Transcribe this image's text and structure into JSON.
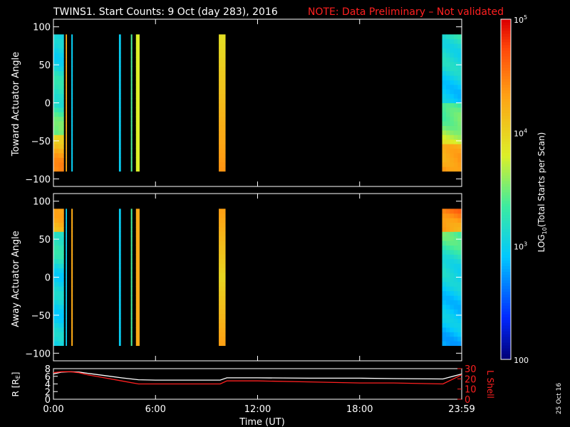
{
  "title": {
    "main": "TWINS1. Start Counts:  9 Oct (day 283), 2016",
    "note": "NOTE: Data Preliminary – Not validated",
    "note_color": "#ff2020"
  },
  "chart_data": [
    {
      "type": "heatmap",
      "panel": "toward",
      "ylabel": "Toward Actuator Angle",
      "ylim": [
        -110,
        110
      ],
      "yticks": [
        "100",
        "50",
        "0",
        "−50",
        "−100"
      ],
      "xlim_hours": [
        0,
        24
      ],
      "bands_hours": [
        {
          "start": 0.0,
          "end": 0.6,
          "profile": "toward_mix"
        },
        {
          "start": 0.72,
          "end": 0.78,
          "profile": "fill_orange"
        },
        {
          "start": 1.05,
          "end": 1.12,
          "profile": "fill_cyan"
        },
        {
          "start": 3.85,
          "end": 3.95,
          "profile": "fill_cyan"
        },
        {
          "start": 4.55,
          "end": 4.62,
          "profile": "fill_green"
        },
        {
          "start": 4.85,
          "end": 5.05,
          "profile": "fill_yellow"
        },
        {
          "start": 9.72,
          "end": 10.1,
          "profile": "toward_hot"
        },
        {
          "start": 22.85,
          "end": 23.99,
          "profile": "toward_cool"
        }
      ]
    },
    {
      "type": "heatmap",
      "panel": "away",
      "ylabel": "Away Actuator Angle",
      "ylim": [
        -110,
        110
      ],
      "yticks": [
        "100",
        "50",
        "0",
        "−50",
        "−100"
      ],
      "xlim_hours": [
        0,
        24
      ],
      "bands_hours": [
        {
          "start": 0.0,
          "end": 0.6,
          "profile": "away_mix"
        },
        {
          "start": 0.72,
          "end": 0.78,
          "profile": "fill_cyan"
        },
        {
          "start": 1.05,
          "end": 1.12,
          "profile": "fill_orange"
        },
        {
          "start": 3.85,
          "end": 3.95,
          "profile": "fill_cyan"
        },
        {
          "start": 4.55,
          "end": 4.62,
          "profile": "fill_green"
        },
        {
          "start": 4.85,
          "end": 5.05,
          "profile": "fill_orange"
        },
        {
          "start": 9.72,
          "end": 10.1,
          "profile": "away_hot"
        },
        {
          "start": 22.85,
          "end": 23.99,
          "profile": "away_cool"
        }
      ]
    },
    {
      "type": "line",
      "panel": "ephemeris",
      "ylabel_left": "R [R",
      "ylabel_left_sub": "E",
      "ylabel_left_end": "]",
      "ylim_left": [
        0,
        8
      ],
      "yticks_left": [
        "8",
        "6",
        "4",
        "2",
        "0"
      ],
      "ylabel_right": "L Shell",
      "ylim_right": [
        0,
        30
      ],
      "yticks_right": [
        "30",
        "20",
        "10",
        "0"
      ],
      "xlabel": "Time (UT)",
      "xticks": [
        "0:00",
        "6:00",
        "12:00",
        "18:00",
        "23:59"
      ],
      "series": [
        {
          "axis": "left",
          "color": "#ffffff",
          "x": [
            0,
            0.5,
            1,
            1.5,
            2,
            3,
            4,
            5,
            6,
            8,
            9.8,
            10.2,
            12,
            15,
            18,
            20,
            22.9,
            24
          ],
          "y": [
            6.6,
            7.1,
            7.2,
            7.1,
            6.8,
            6.2,
            5.6,
            5.1,
            5.0,
            5.0,
            5.0,
            5.6,
            5.6,
            5.5,
            5.5,
            5.4,
            5.3,
            6.6
          ]
        },
        {
          "axis": "right",
          "color": "#ff2020",
          "x": [
            0,
            0.5,
            1,
            1.5,
            2,
            3,
            4,
            5,
            6,
            8,
            9.8,
            10.2,
            12,
            15,
            18,
            20,
            22.9,
            24
          ],
          "y": [
            26,
            27,
            27,
            26,
            24,
            21,
            18,
            15,
            15,
            15,
            15,
            18,
            18,
            17,
            16,
            16,
            15,
            24
          ]
        }
      ]
    }
  ],
  "colorbar": {
    "label_pre": "LOG",
    "label_sub": "10",
    "label_post": "(Total Starts per Scan)",
    "tick_labels": [
      {
        "base": "10",
        "exp": "5"
      },
      {
        "base": "10",
        "exp": "4"
      },
      {
        "base": "10",
        "exp": "3"
      },
      {
        "base": "100",
        "exp": ""
      }
    ],
    "log_min": 2,
    "log_max": 5
  },
  "footer_date": "25 Oct 16"
}
